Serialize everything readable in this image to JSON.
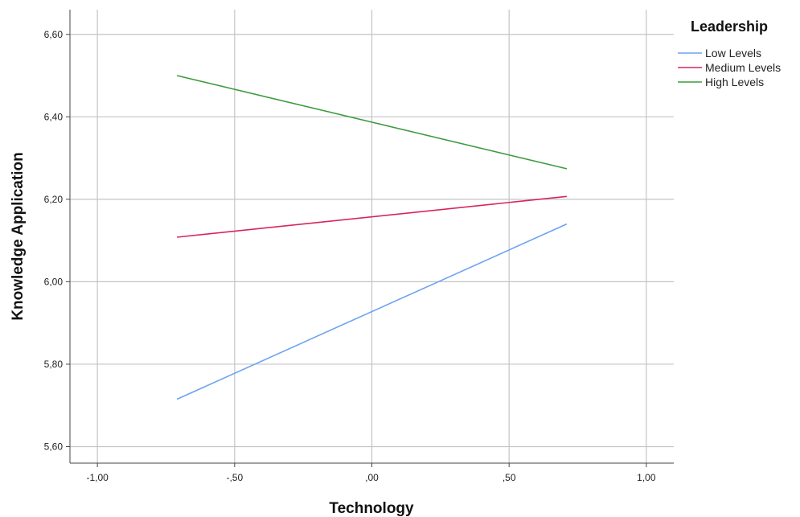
{
  "chart_data": {
    "type": "line",
    "xlabel": "Technology",
    "ylabel": "Knowledge Application",
    "xlim": [
      -1.1,
      1.1
    ],
    "ylim": [
      5.56,
      6.66
    ],
    "xticks": [
      -1.0,
      -0.5,
      0.0,
      0.5,
      1.0
    ],
    "xtick_labels": [
      "-1,00",
      "-,50",
      ",00",
      ",50",
      "1,00"
    ],
    "yticks": [
      5.6,
      5.8,
      6.0,
      6.2,
      6.4,
      6.6
    ],
    "ytick_labels": [
      "5,60",
      "5,80",
      "6,00",
      "6,20",
      "6,40",
      "6,60"
    ],
    "grid": true,
    "legend": {
      "title": "Leadership",
      "position": "top-right"
    },
    "x": [
      -0.71,
      0.71
    ],
    "series": [
      {
        "name": "Low Levels",
        "color": "#6fa4f0",
        "values": [
          5.715,
          6.14
        ]
      },
      {
        "name": "Medium Levels",
        "color": "#d6265a",
        "values": [
          6.108,
          6.207
        ]
      },
      {
        "name": "High Levels",
        "color": "#3e9b3e",
        "values": [
          6.5,
          6.274
        ]
      }
    ]
  }
}
